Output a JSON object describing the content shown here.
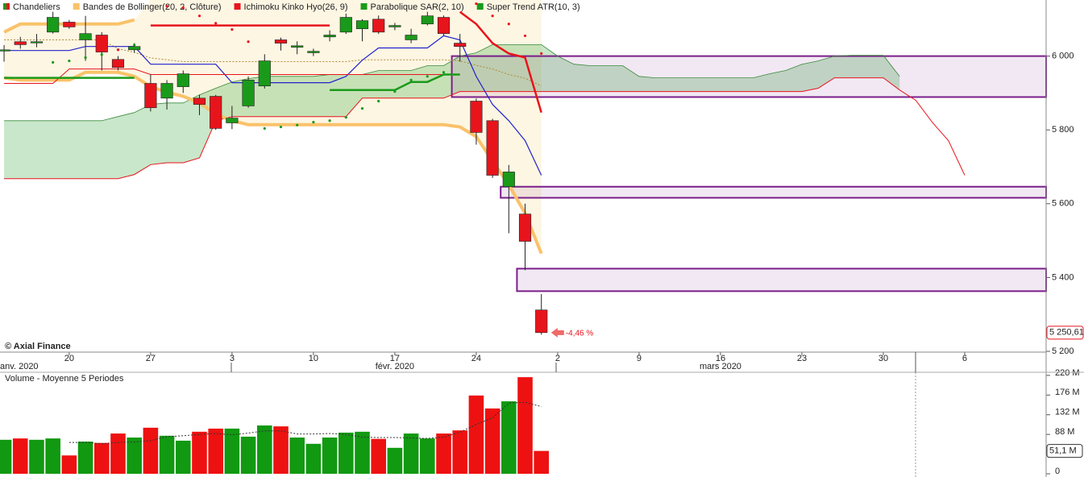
{
  "chart_data": [
    {
      "type": "candlestick",
      "xlim": [
        -0.25,
        64.0
      ],
      "ylim": [
        5200,
        6152
      ],
      "xticks": [
        {
          "value": 4,
          "label": "20"
        },
        {
          "value": 9,
          "label": "27"
        },
        {
          "value": 14,
          "label": "3"
        },
        {
          "value": 19,
          "label": "10"
        },
        {
          "value": 24,
          "label": "17"
        },
        {
          "value": 29,
          "label": "24"
        },
        {
          "value": 34,
          "label": "2"
        },
        {
          "value": 39,
          "label": "9"
        },
        {
          "value": 44,
          "label": "16"
        },
        {
          "value": 49,
          "label": "23"
        },
        {
          "value": 54,
          "label": "30"
        },
        {
          "value": 59,
          "label": "6"
        }
      ],
      "month_labels": [
        {
          "value": 0,
          "label": "anv. 2020"
        },
        {
          "value": 24,
          "label": "févr. 2020"
        },
        {
          "value": 44,
          "label": "mars 2020"
        }
      ],
      "yticks": [
        {
          "value": 6000,
          "label": "6 000"
        },
        {
          "value": 5800,
          "label": "5 800"
        },
        {
          "value": 5600,
          "label": "5 600"
        },
        {
          "value": 5400,
          "label": "5 400"
        },
        {
          "value": 5200,
          "label": "5 200"
        }
      ],
      "last_price": {
        "value": 5250.61,
        "label": "5 250,61"
      },
      "annotation": "-4,46 %",
      "credit": "© Axial Finance",
      "series": [
        {
          "name": "Chandeliers",
          "color": "#1a9a1a",
          "down_color": "#e8141c",
          "open": [
            6015,
            6039,
            6037,
            6065,
            6092,
            6044,
            6057,
            5991,
            6017,
            5926,
            5886,
            5917,
            5886,
            5891,
            5819,
            5865,
            5919,
            6044,
            6024,
            6009,
            6052,
            6065,
            6074,
            6100,
            6079,
            6044,
            6087,
            6105,
            6035,
            5878,
            5825,
            5646,
            5572,
            5312
          ],
          "high": [
            6030,
            6052,
            6060,
            6120,
            6098,
            6109,
            6065,
            6000,
            6035,
            5950,
            5935,
            5961,
            5895,
            5895,
            5865,
            5945,
            6005,
            6050,
            6040,
            6020,
            6070,
            6115,
            6100,
            6110,
            6090,
            6074,
            6120,
            6110,
            6060,
            5885,
            5830,
            5705,
            5600,
            5355
          ],
          "low": [
            5985,
            6020,
            6024,
            6061,
            6074,
            5987,
            5961,
            5961,
            6009,
            5850,
            5855,
            5900,
            5840,
            5800,
            5802,
            5860,
            5912,
            6015,
            6005,
            6000,
            6040,
            6060,
            6040,
            6060,
            6070,
            6035,
            6083,
            6055,
            5985,
            5760,
            5670,
            5520,
            5420,
            5245
          ],
          "close": [
            6017,
            6031,
            6039,
            6105,
            6079,
            6061,
            6011,
            5969,
            6026,
            5860,
            5926,
            5952,
            5869,
            5804,
            5832,
            5935,
            5987,
            6035,
            6028,
            6013,
            6057,
            6105,
            6096,
            6065,
            6083,
            6057,
            6109,
            6061,
            6026,
            5793,
            5677,
            5686,
            5498,
            5250.61
          ]
        },
        {
          "name": "Bandes de Bollinger(20, 2, Clôture)",
          "color": "#f9c26a",
          "middle_color": "#b08a3a",
          "fill": "#fdf6e3",
          "upper": [
            6065,
            6087,
            6087,
            6087,
            6087,
            6087,
            6087,
            6087,
            6098,
            null,
            null,
            null,
            null,
            null,
            null,
            null,
            null,
            null,
            null,
            null,
            null,
            null,
            null,
            null,
            null,
            null,
            null,
            null,
            null,
            null,
            null,
            null,
            null,
            null
          ],
          "middle": [
            6044,
            6044,
            6044,
            6044,
            6044,
            6044,
            6044,
            6020,
            6010,
            5995,
            5990,
            5985,
            5985,
            5985,
            5985,
            5985,
            5985,
            5985,
            5985,
            5985,
            5985,
            5985,
            5990,
            5990,
            5990,
            5990,
            5990,
            5990,
            5987,
            5975,
            5965,
            5950,
            5940,
            5919
          ],
          "lower": [
            5941,
            5935,
            5935,
            5935,
            5935,
            5956,
            5956,
            5956,
            5945,
            5917,
            5902,
            5891,
            5873,
            5843,
            5825,
            5814,
            5814,
            5814,
            5814,
            5814,
            5814,
            5814,
            5814,
            5814,
            5814,
            5814,
            5814,
            5814,
            5808,
            5782,
            5716,
            5651,
            5574,
            5465
          ]
        },
        {
          "name": "Ichimoku Kinko Hyo(26, 9)",
          "color": "#e8141c",
          "tenkan_color": "#2222cc",
          "span_a_color": "#3a8a3a",
          "cloud_color": "#4caf50",
          "tenkan": [
            6015,
            6015,
            6015,
            6015,
            6015,
            6026,
            6026,
            6026,
            6026,
            5978,
            5978,
            5978,
            5978,
            5978,
            5928,
            5928,
            5928,
            5928,
            5928,
            5928,
            5928,
            5945,
            5989,
            6022,
            6022,
            6022,
            6022,
            6055,
            6044,
            5945,
            5869,
            5825,
            5771,
            5677
          ],
          "kijun": [
            5926,
            5926,
            5926,
            5926,
            5965,
            5965,
            5965,
            5965,
            5965,
            5950,
            5950,
            5950,
            5950,
            5950,
            5950,
            5950,
            5950,
            5950,
            5950,
            5950,
            5950,
            5950,
            5950,
            5950,
            5950,
            5950,
            5950,
            5950,
            5950,
            null,
            null,
            null,
            null,
            null
          ],
          "span_a": [
            5825,
            5825,
            5825,
            5825,
            5825,
            5825,
            5825,
            5836,
            5847,
            5869,
            5873,
            5873,
            5895,
            5913,
            5930,
            5939,
            5945,
            5945,
            5945,
            5945,
            5950,
            5950,
            5950,
            5961,
            5961,
            5961,
            5974,
            5974,
            6000,
            6009,
            6031,
            6031,
            6031,
            6031,
            6000,
            5978,
            5974,
            5974,
            5974,
            5945,
            5941,
            5941,
            5941,
            5941,
            5941,
            5941,
            5941,
            5952,
            5961,
            5978,
            5987,
            6000,
            6002,
            6002,
            6002,
            5945,
            null,
            null,
            null,
            null
          ],
          "span_b": [
            5668,
            5668,
            5668,
            5668,
            5668,
            5668,
            5668,
            5668,
            5679,
            5706,
            5711,
            5711,
            5724,
            5825,
            5836,
            5836,
            5836,
            5836,
            5836,
            5836,
            5836,
            5836,
            5886,
            5886,
            5886,
            5886,
            5886,
            5886,
            5904,
            5904,
            5904,
            5904,
            5904,
            5904,
            5904,
            5904,
            5904,
            5904,
            5904,
            5904,
            5904,
            5904,
            5904,
            5904,
            5904,
            5904,
            5904,
            5904,
            5904,
            5904,
            5913,
            5941,
            5941,
            5941,
            5941,
            5908,
            5880,
            5821,
            5771,
            5677
          ]
        },
        {
          "name": "Parabolique SAR(2, 10)",
          "color": "#1a9a1a",
          "down_color": "#e8141c",
          "values": [
            null,
            null,
            null,
            5983,
            5987,
            5996,
            6004,
            6017,
            6030,
            null,
            6135,
            6131,
            6109,
            6089,
            6072,
            6039,
            5804,
            5808,
            5813,
            5821,
            5825,
            5834,
            5858,
            5878,
            5904,
            5935,
            5945,
            5956,
            null,
            6142,
            6109,
            6087,
            6055,
            6007
          ]
        },
        {
          "name": "Super Trend ATR(10, 3)",
          "color": "#1a9a1a",
          "down_color": "#e8141c",
          "up": [
            5941,
            5941,
            5941,
            5941,
            5941,
            5941,
            5941,
            5941,
            5941,
            null,
            null,
            null,
            null,
            null,
            null,
            null,
            null,
            null,
            null,
            null,
            5908,
            5908,
            5908,
            5908,
            5908,
            5930,
            5930,
            5950,
            5950,
            null,
            null,
            null,
            null,
            null
          ],
          "down": [
            null,
            null,
            null,
            null,
            null,
            null,
            null,
            null,
            null,
            6083,
            6083,
            6083,
            6083,
            6083,
            6083,
            6083,
            6083,
            6083,
            6083,
            6083,
            6083,
            null,
            null,
            null,
            null,
            null,
            null,
            null,
            6120,
            6087,
            6035,
            6007,
            5996,
            5847
          ]
        }
      ],
      "zones": [
        {
          "start": 28,
          "top": 6000,
          "bottom": 5889
        },
        {
          "start": 31,
          "top": 5646,
          "bottom": 5616
        },
        {
          "start": 32,
          "top": 5424,
          "bottom": 5363
        }
      ],
      "zone_color": "#7a1f8a"
    },
    {
      "type": "bar",
      "title": "Volume  - Moyenne 5 Periodes",
      "xlim": [
        -0.25,
        64.0
      ],
      "ylim": [
        0,
        227
      ],
      "yticks": [
        {
          "value": 220,
          "label": "220 M"
        },
        {
          "value": 176,
          "label": "176 M"
        },
        {
          "value": 132,
          "label": "132 M"
        },
        {
          "value": 88,
          "label": "88 M"
        },
        0
      ],
      "last_value": {
        "value": 51.1,
        "label": "51,1 M"
      },
      "color": "#119911",
      "down_color": "#ee1111",
      "values": [
        76,
        79,
        76,
        79,
        41,
        72,
        69,
        90,
        81,
        103,
        85,
        74,
        94,
        101,
        101,
        83,
        108,
        106,
        81,
        67,
        81,
        92,
        94,
        78,
        58,
        90,
        79,
        90,
        97,
        175,
        146,
        162,
        216,
        51.1
      ],
      "ma5": [
        null,
        null,
        null,
        null,
        70,
        70,
        67,
        70,
        71,
        74,
        83,
        85,
        88,
        90,
        87,
        91,
        96,
        96,
        89,
        89,
        90,
        88,
        82,
        81,
        81,
        80,
        79,
        82,
        93,
        110,
        125,
        158,
        160,
        150
      ]
    }
  ]
}
